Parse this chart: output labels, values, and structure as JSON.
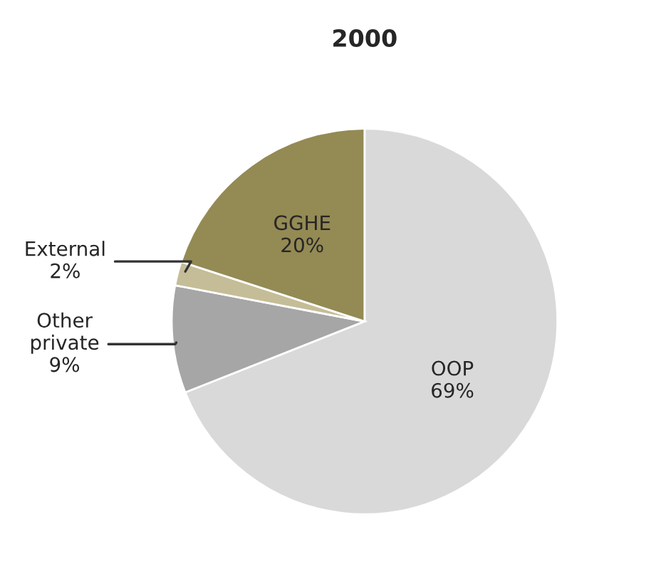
{
  "chart_data": {
    "type": "pie",
    "title": "2000",
    "categories": [
      "OOP",
      "Other private",
      "External",
      "GGHE"
    ],
    "values": [
      69,
      9,
      2,
      20
    ],
    "value_labels": [
      "69%",
      "9%",
      "2%",
      "20%"
    ],
    "colors": [
      "#d9d9d9",
      "#a6a6a6",
      "#c4bd97",
      "#948a54"
    ]
  }
}
